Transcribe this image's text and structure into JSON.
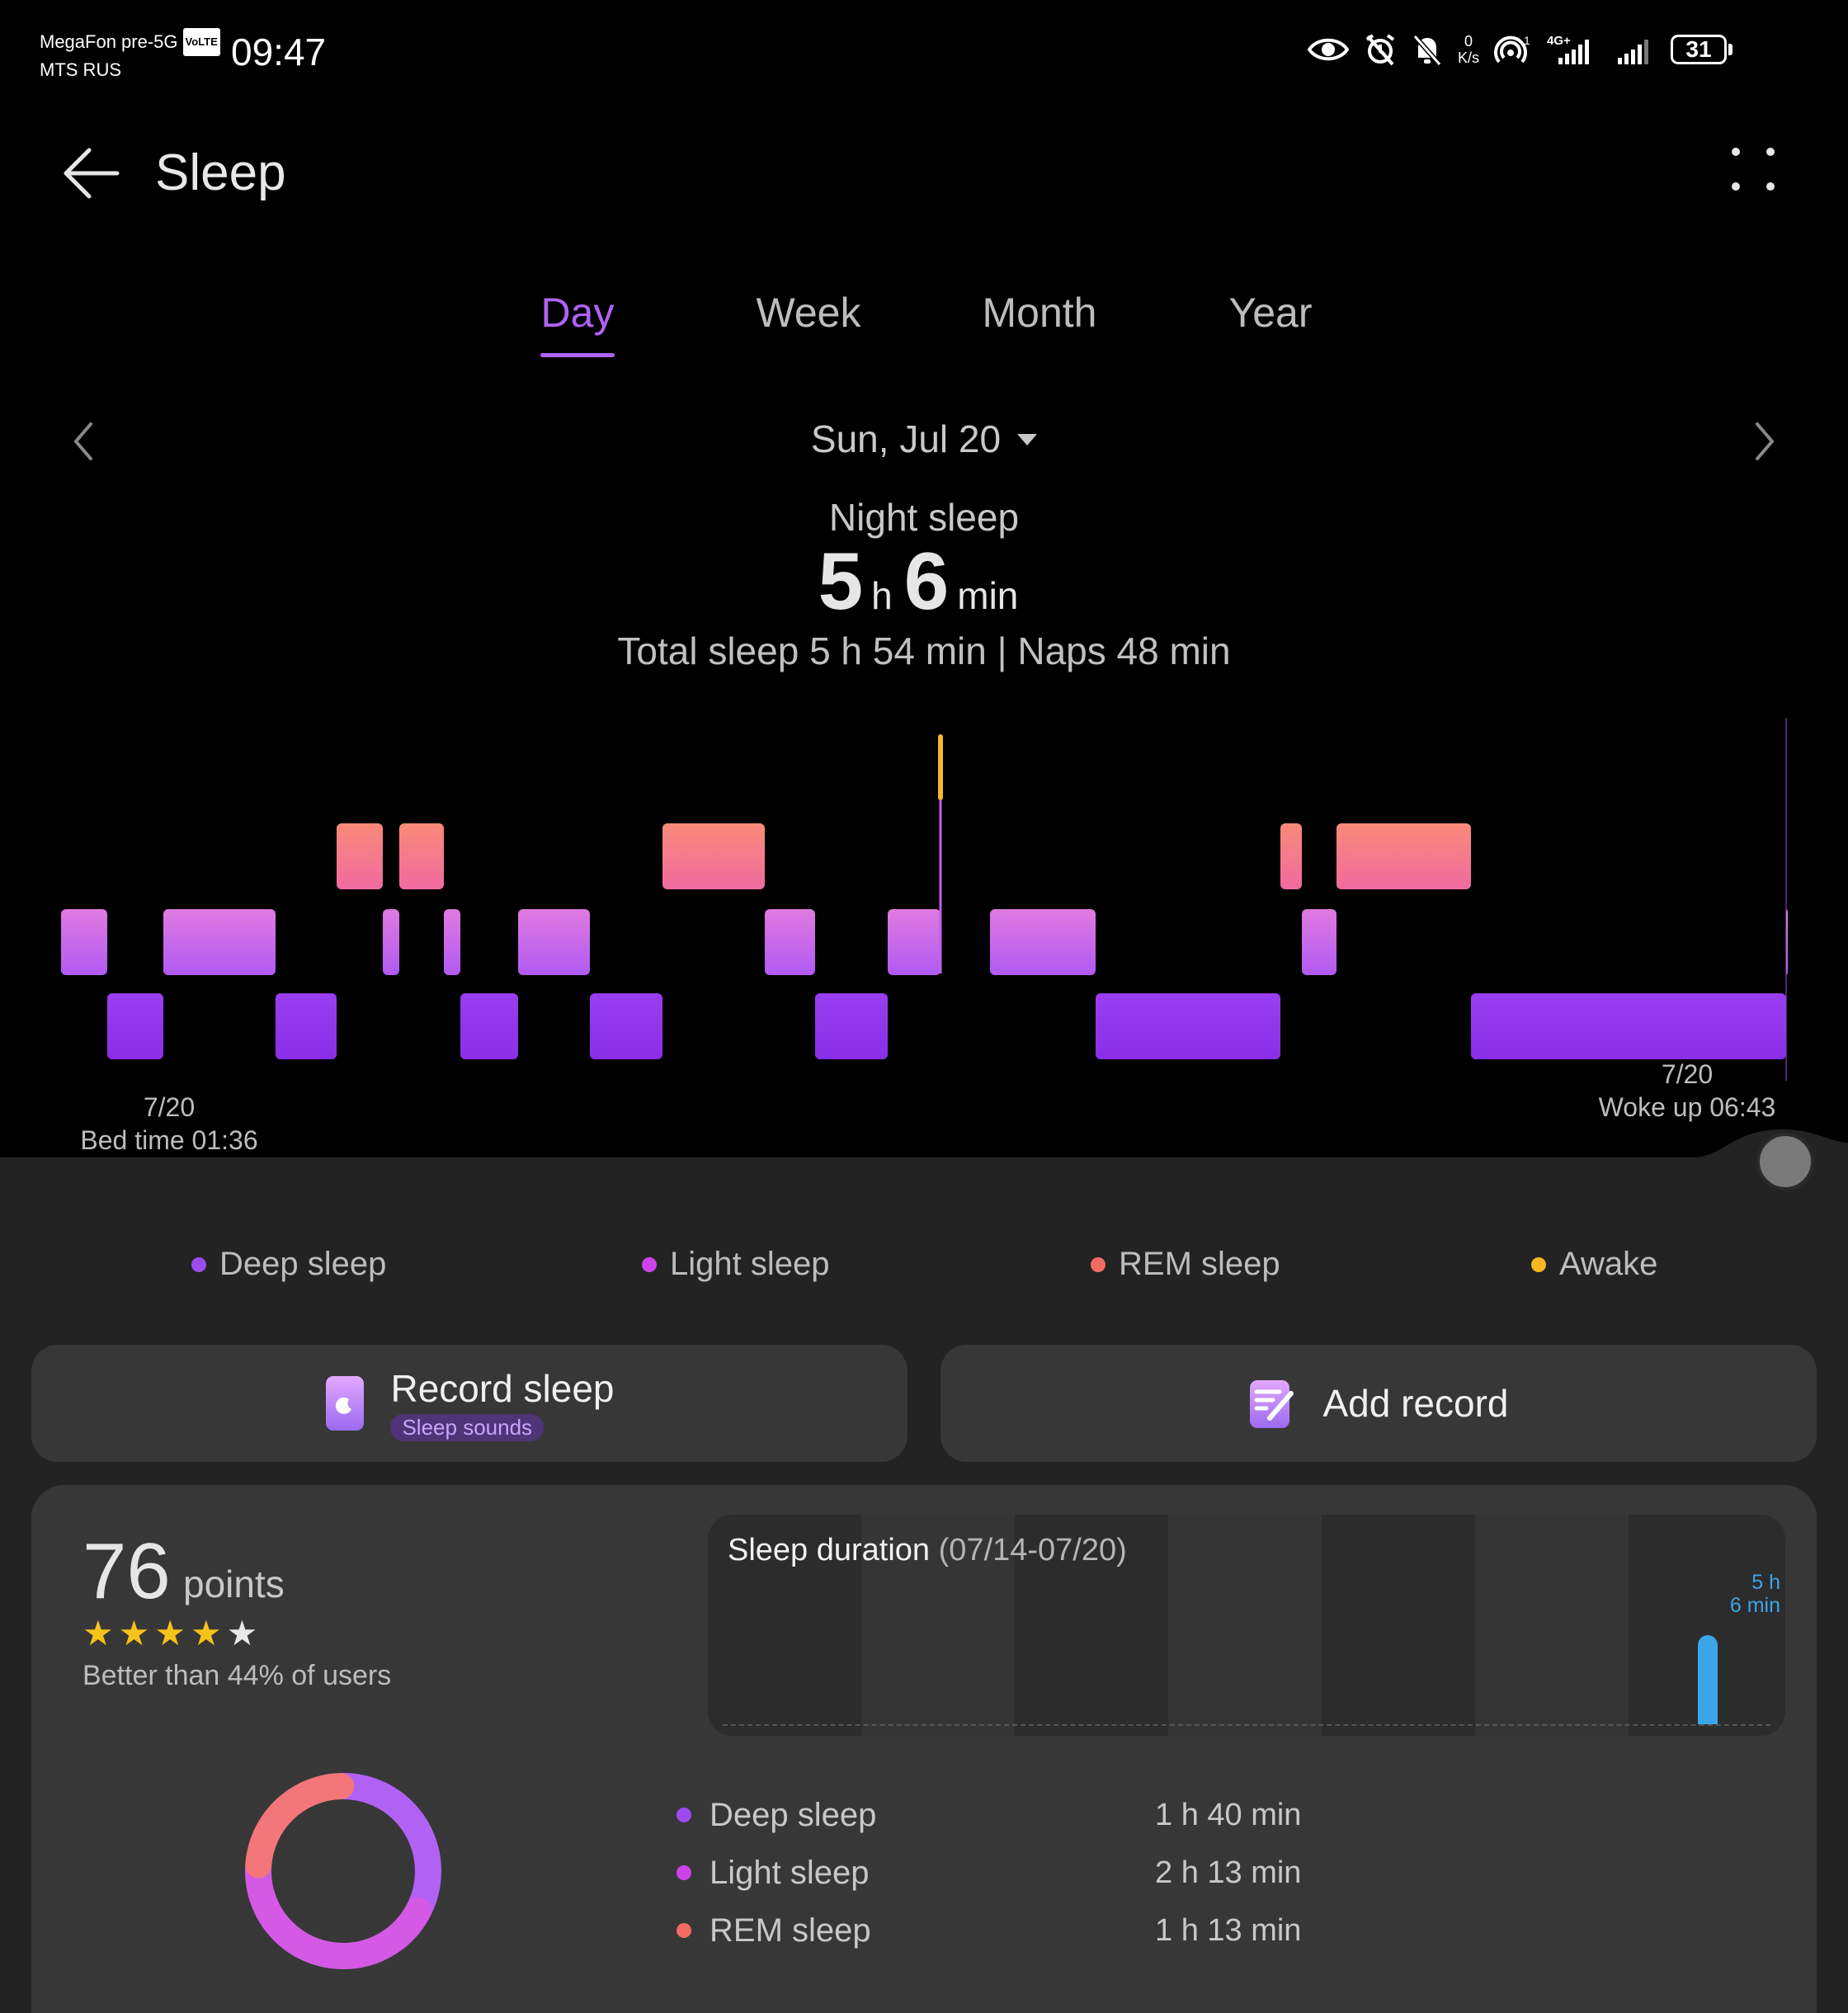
{
  "status": {
    "carrier1": "MegaFon pre-5G",
    "volte": "VoLTE",
    "carrier2": "MTS RUS",
    "time": "09:47",
    "net_speed_value": "0",
    "net_speed_unit": "K/s",
    "sim_slot": "1",
    "network_type": "4G+",
    "battery": "31"
  },
  "appbar": {
    "title": "Sleep"
  },
  "tabs": [
    {
      "label": "Day",
      "active": true
    },
    {
      "label": "Week",
      "active": false
    },
    {
      "label": "Month",
      "active": false
    },
    {
      "label": "Year",
      "active": false
    }
  ],
  "date": "Sun, Jul 20",
  "summary": {
    "label": "Night sleep",
    "hours": "5",
    "hours_unit": "h",
    "minutes": "6",
    "minutes_unit": "min",
    "details": "Total sleep 5 h 54 min | Naps 48 min"
  },
  "hypnogram": {
    "bed_date": "7/20",
    "bed_time": "Bed time 01:36",
    "wake_date": "7/20",
    "wake_time": "Woke up 06:43",
    "stages_order": [
      "light",
      "deep",
      "light",
      "deep",
      "rem",
      "light",
      "rem",
      "light",
      "deep",
      "light",
      "deep",
      "rem",
      "light",
      "deep",
      "light",
      "awake",
      "light",
      "deep",
      "rem",
      "light",
      "rem",
      "deep",
      "light"
    ],
    "colors": {
      "deep": "#9b3df0",
      "light": "#c35ef0",
      "rem": "#f47f73",
      "awake": "#f5b82e"
    }
  },
  "legend": [
    {
      "label": "Deep sleep",
      "color": "#9b4bef"
    },
    {
      "label": "Light sleep",
      "color": "#cc44e8"
    },
    {
      "label": "REM sleep",
      "color": "#f16b62"
    },
    {
      "label": "Awake",
      "color": "#f8b71c"
    }
  ],
  "actions": {
    "record_label": "Record sleep",
    "record_sub": "Sleep sounds",
    "add_label": "Add record"
  },
  "score": {
    "value": "76",
    "unit": "points",
    "stars_filled": 4,
    "stars_total": 5,
    "better_than": "Better than 44% of users"
  },
  "duration_chart": {
    "title": "Sleep duration",
    "range": "(07/14-07/20)",
    "bar_label_line1": "5 h",
    "bar_label_line2": "6 min",
    "last_day_minutes": 306
  },
  "breakdown": [
    {
      "name": "Deep sleep",
      "value": "1 h 40 min",
      "color": "#9b4bef",
      "minutes": 100
    },
    {
      "name": "Light sleep",
      "value": "2 h 13 min",
      "color": "#cc44e8",
      "minutes": 133
    },
    {
      "name": "REM sleep",
      "value": "1 h 13 min",
      "color": "#f16b62",
      "minutes": 73
    }
  ]
}
